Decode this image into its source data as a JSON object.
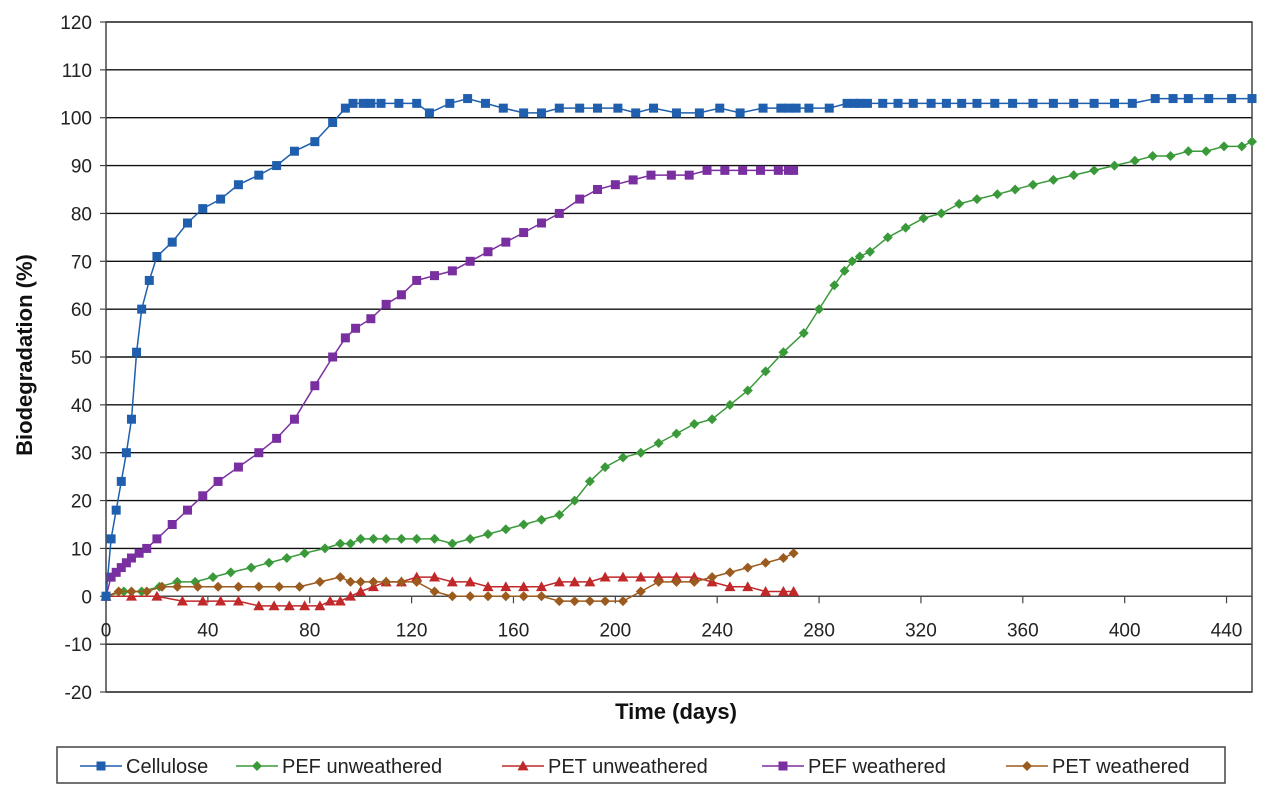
{
  "chart_data": {
    "type": "line",
    "xlabel": "Time (days)",
    "ylabel": "Biodegradation (%)",
    "xlim": [
      0,
      450
    ],
    "ylim": [
      -20,
      120
    ],
    "xticks": [
      0,
      40,
      80,
      120,
      160,
      200,
      240,
      280,
      320,
      360,
      400,
      440
    ],
    "yticks": [
      -20,
      -10,
      0,
      10,
      20,
      30,
      40,
      50,
      60,
      70,
      80,
      90,
      100,
      110,
      120
    ],
    "grid": "horizontal",
    "legend_position": "bottom",
    "series": [
      {
        "name": "Cellulose",
        "color": "#1f5fad",
        "marker": "square",
        "x": [
          0,
          2,
          4,
          6,
          8,
          10,
          12,
          14,
          17,
          20,
          26,
          32,
          38,
          45,
          52,
          60,
          67,
          74,
          82,
          89,
          94,
          97,
          101,
          104,
          108,
          115,
          122,
          127,
          135,
          142,
          149,
          156,
          164,
          171,
          178,
          186,
          193,
          201,
          208,
          215,
          224,
          233,
          241,
          249,
          258,
          265,
          268,
          271,
          276,
          284,
          291,
          294,
          296,
          299,
          305,
          311,
          317,
          324,
          330,
          336,
          342,
          349,
          356,
          364,
          372,
          380,
          388,
          396,
          403,
          412,
          419,
          425,
          433,
          442,
          450
        ],
        "y": [
          0,
          12,
          18,
          24,
          30,
          37,
          51,
          60,
          66,
          71,
          74,
          78,
          81,
          83,
          86,
          88,
          90,
          93,
          95,
          99,
          102,
          103,
          103,
          103,
          103,
          103,
          103,
          101,
          103,
          104,
          103,
          102,
          101,
          101,
          102,
          102,
          102,
          102,
          101,
          102,
          101,
          101,
          102,
          101,
          102,
          102,
          102,
          102,
          102,
          102,
          103,
          103,
          103,
          103,
          103,
          103,
          103,
          103,
          103,
          103,
          103,
          103,
          103,
          103,
          103,
          103,
          103,
          103,
          103,
          104,
          104,
          104,
          104,
          104,
          104
        ]
      },
      {
        "name": "PEF unweathered",
        "color": "#3a9a3a",
        "marker": "diamond",
        "x": [
          0,
          7,
          14,
          21,
          28,
          35,
          42,
          49,
          57,
          64,
          71,
          78,
          86,
          92,
          96,
          100,
          105,
          110,
          116,
          122,
          129,
          136,
          143,
          150,
          157,
          164,
          171,
          178,
          184,
          190,
          196,
          203,
          210,
          217,
          224,
          231,
          238,
          245,
          252,
          259,
          266,
          274,
          280,
          286,
          290,
          293,
          296,
          300,
          307,
          314,
          321,
          328,
          335,
          342,
          350,
          357,
          364,
          372,
          380,
          388,
          396,
          404,
          411,
          418,
          425,
          432,
          439,
          446,
          450
        ],
        "y": [
          0,
          1,
          1,
          2,
          3,
          3,
          4,
          5,
          6,
          7,
          8,
          9,
          10,
          11,
          11,
          12,
          12,
          12,
          12,
          12,
          12,
          11,
          12,
          13,
          14,
          15,
          16,
          17,
          20,
          24,
          27,
          29,
          30,
          32,
          34,
          36,
          37,
          40,
          43,
          47,
          51,
          55,
          60,
          65,
          68,
          70,
          71,
          72,
          75,
          77,
          79,
          80,
          82,
          83,
          84,
          85,
          86,
          87,
          88,
          89,
          90,
          91,
          92,
          92,
          93,
          93,
          94,
          94,
          95
        ]
      },
      {
        "name": "PET unweathered",
        "color": "#c0282a",
        "marker": "triangle",
        "x": [
          0,
          10,
          20,
          30,
          38,
          45,
          52,
          60,
          66,
          72,
          78,
          84,
          88,
          92,
          96,
          100,
          105,
          110,
          116,
          122,
          129,
          136,
          143,
          150,
          157,
          164,
          171,
          178,
          184,
          190,
          196,
          203,
          210,
          217,
          224,
          231,
          238,
          245,
          252,
          259,
          266,
          270
        ],
        "y": [
          0,
          0,
          0,
          -1,
          -1,
          -1,
          -1,
          -2,
          -2,
          -2,
          -2,
          -2,
          -1,
          -1,
          0,
          1,
          2,
          3,
          3,
          4,
          4,
          3,
          3,
          2,
          2,
          2,
          2,
          3,
          3,
          3,
          4,
          4,
          4,
          4,
          4,
          4,
          3,
          2,
          2,
          1,
          1,
          1
        ]
      },
      {
        "name": "PEF weathered",
        "color": "#7a2fa0",
        "marker": "square",
        "x": [
          0,
          2,
          4,
          6,
          8,
          10,
          13,
          16,
          20,
          26,
          32,
          38,
          44,
          52,
          60,
          67,
          74,
          82,
          89,
          94,
          98,
          104,
          110,
          116,
          122,
          129,
          136,
          143,
          150,
          157,
          164,
          171,
          178,
          186,
          193,
          200,
          207,
          214,
          222,
          229,
          236,
          243,
          250,
          257,
          264,
          268,
          270
        ],
        "y": [
          0,
          4,
          5,
          6,
          7,
          8,
          9,
          10,
          12,
          15,
          18,
          21,
          24,
          27,
          30,
          33,
          37,
          44,
          50,
          54,
          56,
          58,
          61,
          63,
          66,
          67,
          68,
          70,
          72,
          74,
          76,
          78,
          80,
          83,
          85,
          86,
          87,
          88,
          88,
          88,
          89,
          89,
          89,
          89,
          89,
          89,
          89
        ]
      },
      {
        "name": "PET weathered",
        "color": "#9b5a1e",
        "marker": "diamond",
        "x": [
          0,
          5,
          10,
          16,
          22,
          28,
          36,
          44,
          52,
          60,
          68,
          76,
          84,
          92,
          96,
          100,
          105,
          110,
          116,
          122,
          129,
          136,
          143,
          150,
          157,
          164,
          171,
          178,
          184,
          190,
          196,
          203,
          210,
          217,
          224,
          231,
          238,
          245,
          252,
          259,
          266,
          270
        ],
        "y": [
          0,
          1,
          1,
          1,
          2,
          2,
          2,
          2,
          2,
          2,
          2,
          2,
          3,
          4,
          3,
          3,
          3,
          3,
          3,
          3,
          1,
          0,
          0,
          0,
          0,
          0,
          0,
          -1,
          -1,
          -1,
          -1,
          -1,
          1,
          3,
          3,
          3,
          4,
          5,
          6,
          7,
          8,
          9
        ]
      }
    ]
  }
}
